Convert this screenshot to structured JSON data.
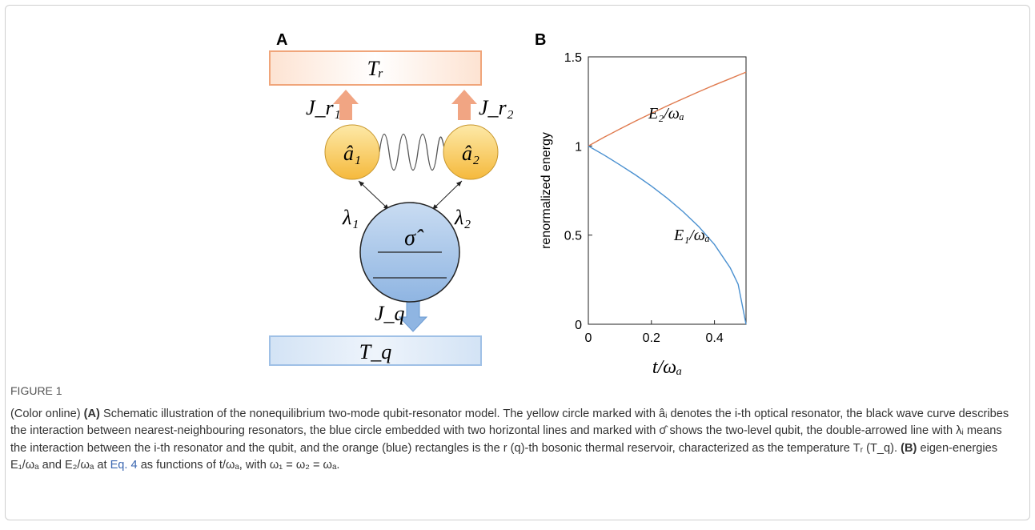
{
  "figure": {
    "label_a": "A",
    "label_b": "B",
    "t_r": "Tᵣ",
    "t_q": "T_q",
    "j_r1": "J_r₁",
    "j_r2": "J_r₂",
    "a1": "â₁",
    "a2": "â₂",
    "lambda1": "λ₁",
    "lambda2": "λ₂",
    "sigma": "σ̂",
    "j_q": "J_q"
  },
  "chart_data": {
    "type": "line",
    "x": [
      0,
      0.05,
      0.1,
      0.15,
      0.2,
      0.25,
      0.3,
      0.35,
      0.4,
      0.45,
      0.475,
      0.5
    ],
    "series": [
      {
        "name": "E₂/ωₐ",
        "color": "#e07b4f",
        "values": [
          1,
          1.049,
          1.095,
          1.14,
          1.183,
          1.225,
          1.265,
          1.304,
          1.342,
          1.378,
          1.396,
          1.414
        ]
      },
      {
        "name": "E₁/ωₐ",
        "color": "#4a90d0",
        "values": [
          1,
          0.949,
          0.894,
          0.837,
          0.775,
          0.707,
          0.632,
          0.548,
          0.447,
          0.316,
          0.224,
          0
        ]
      }
    ],
    "xlim": [
      0,
      0.5
    ],
    "ylim": [
      0,
      1.5
    ],
    "xticks": [
      0,
      0.2,
      0.4
    ],
    "yticks": [
      0,
      0.5,
      1,
      1.5
    ],
    "xlabel": "t/ωₐ",
    "ylabel": "renormalized energy"
  },
  "caption": {
    "label": "FIGURE 1",
    "segments": [
      "(Color online) ",
      "(A)",
      " Schematic illustration of the nonequilibrium two-mode qubit-resonator model. The yellow circle marked with âᵢ denotes the i-th optical resonator, the black wave curve describes the interaction between nearest-neighbouring resonators, the blue circle embedded with two horizontal lines and marked with σ̂ shows the two-level qubit, the double-arrowed line with λᵢ means the interaction between the i-th resonator and the qubit, and the orange (blue) rectangles is the r (q)-th bosonic thermal reservoir, characterized as the temperature Tᵣ (T_q). ",
      "(B)",
      " eigen-energies E₁/ωₐ and E₂/ωₐ at ",
      "Eq. 4",
      " as functions of t/ωₐ, with ω₁ = ω₂ = ωₐ."
    ]
  }
}
